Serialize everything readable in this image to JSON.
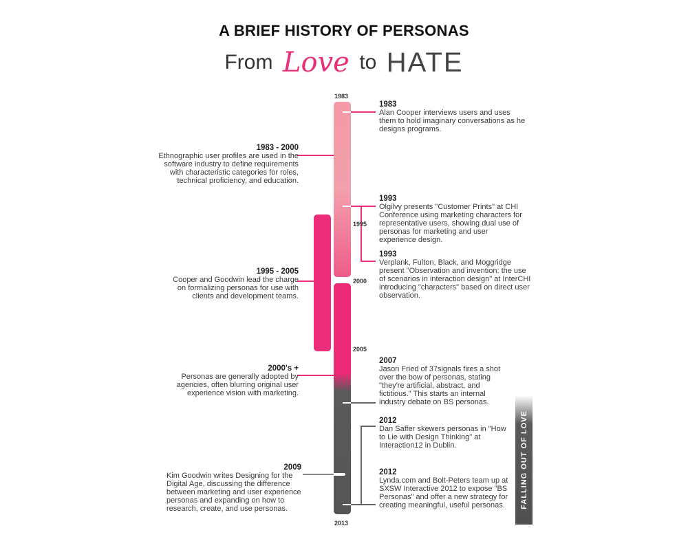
{
  "header": {
    "title": "A BRIEF HISTORY OF PERSONAS",
    "subtitle_from": "From",
    "subtitle_love": "Love",
    "subtitle_to": "to",
    "subtitle_hate": "HATE"
  },
  "timeline": {
    "ticks": [
      "1983",
      "1995",
      "2000",
      "2005",
      "2013"
    ],
    "side_label": "FALLING OUT OF LOVE"
  },
  "events_left": [
    {
      "year": "1983 - 2000",
      "text": "Ethnographic user profiles are used in the software industry to define requirements with characteristic categories for roles, technical proficiency, and education."
    },
    {
      "year": "1995 - 2005",
      "text": "Cooper and Goodwin lead the charge on formalizing personas for use with clients and development teams."
    },
    {
      "year": "2000's +",
      "text": "Personas are generally adopted by agencies, often blurring original user experience vision with marketing."
    },
    {
      "year": "2009",
      "text": "Kim Goodwin writes Designing for the Digital Age, discussing the difference between marketing and user experience personas and expanding on how to research, create, and use personas."
    }
  ],
  "events_right": [
    {
      "year": "1983",
      "text": "Alan Cooper interviews users and uses them to hold imaginary conversations as he designs programs."
    },
    {
      "year": "1993",
      "text": "Olgilvy presents \"Customer Prints\" at CHI Conference using marketing characters for representative users, showing dual use of personas for marketing and user experience design."
    },
    {
      "year": "1993",
      "text": "Verplank, Fulton, Black, and Moggridge present \"Observation and invention: the use of scenarios in interaction design\" at InterCHI introducing \"characters\" based on direct user observation."
    },
    {
      "year": "2007",
      "text": "Jason Fried of 37signals fires a shot over the bow of personas, stating \"they're artificial, abstract, and fictitious.\" This starts an internal industry debate on BS personas."
    },
    {
      "year": "2012",
      "text": "Dan Saffer skewers personas in \"How to Lie with Design Thinking\" at Interaction12 in Dublin."
    },
    {
      "year": "2012",
      "text": "Lynda.com and Bolt-Peters team up at SXSW Interactive 2012 to expose \"BS Personas\" and offer a new strategy for creating meaningful, useful personas."
    }
  ],
  "colors": {
    "pink": "#ec2d7a",
    "light_pink": "#f49aa8",
    "dark_gray": "#555555"
  }
}
